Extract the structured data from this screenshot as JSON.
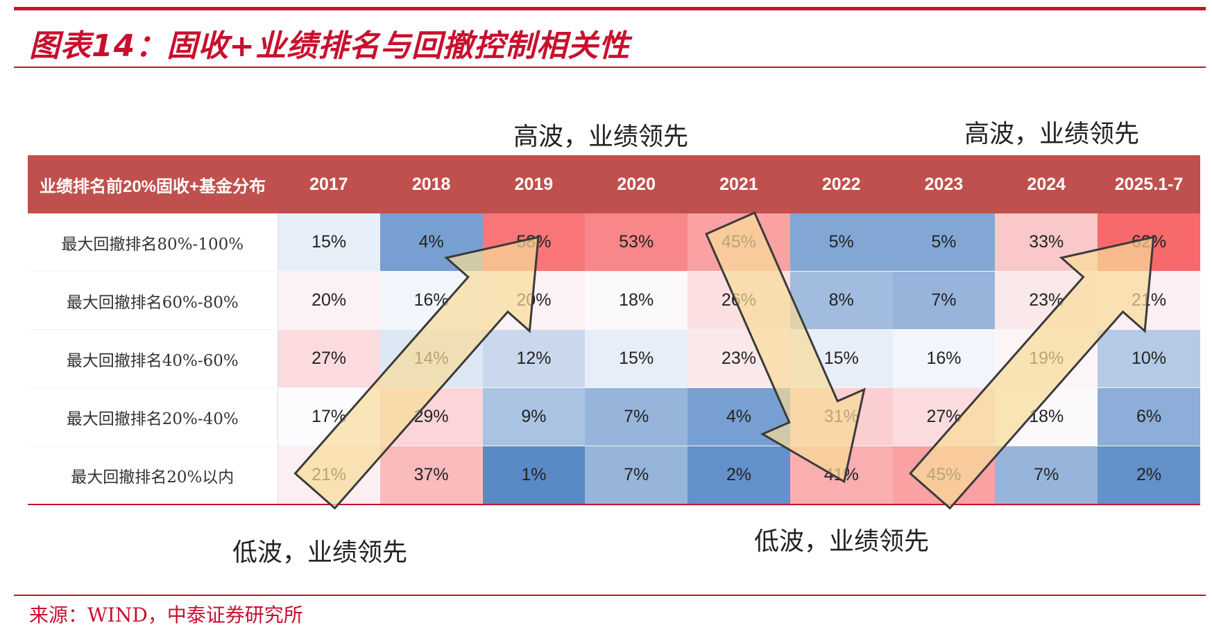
{
  "title": "图表14：固收+业绩排名与回撤控制相关性",
  "annotations": {
    "top_left": "高波，业绩领先",
    "top_right": "高波，业绩领先",
    "bottom_left": "低波，业绩领先",
    "bottom_right": "低波，业绩领先"
  },
  "source": "来源：WIND，中泰证券研究所",
  "colors": {
    "brand_red": "#c8102e",
    "header_bg": "#c0504d",
    "heat_high": "#f8696b",
    "heat_mid": "#fcfcff",
    "heat_low": "#5a8ac6",
    "arrow_fill": "#f8dc98",
    "arrow_stroke": "#3a3a3a"
  },
  "chart_data": {
    "type": "heatmap",
    "corner_label": "业绩排名前20%固收+基金分布",
    "columns": [
      "2017",
      "2018",
      "2019",
      "2020",
      "2021",
      "2022",
      "2023",
      "2024",
      "2025.1-7"
    ],
    "rows": [
      {
        "label": "最大回撤排名80%-100%",
        "values": [
          15,
          4,
          58,
          53,
          45,
          5,
          5,
          33,
          62
        ]
      },
      {
        "label": "最大回撤排名60%-80%",
        "values": [
          20,
          16,
          20,
          18,
          26,
          8,
          7,
          23,
          21
        ]
      },
      {
        "label": "最大回撤排名40%-60%",
        "values": [
          27,
          14,
          12,
          15,
          23,
          15,
          16,
          19,
          10
        ]
      },
      {
        "label": "最大回撤排名20%-40%",
        "values": [
          17,
          29,
          9,
          7,
          4,
          31,
          27,
          18,
          6
        ]
      },
      {
        "label": "最大回撤排名20%以内",
        "values": [
          21,
          37,
          1,
          7,
          2,
          41,
          45,
          7,
          2
        ]
      }
    ],
    "unit": "%",
    "color_scale": {
      "min": 1,
      "mid": 17,
      "max": 62
    },
    "arrows": [
      {
        "direction": "up-right",
        "from": [
          "2017",
          "最大回撤排名20%以内"
        ],
        "to": [
          "2019",
          "最大回撤排名80%-100%"
        ]
      },
      {
        "direction": "down-right",
        "from": [
          "2021",
          "最大回撤排名80%-100%"
        ],
        "to": [
          "2022",
          "最大回撤排名20%以内"
        ]
      },
      {
        "direction": "up-right",
        "from": [
          "2023",
          "最大回撤排名20%以内"
        ],
        "to": [
          "2025.1-7",
          "最大回撤排名80%-100%"
        ]
      }
    ]
  }
}
